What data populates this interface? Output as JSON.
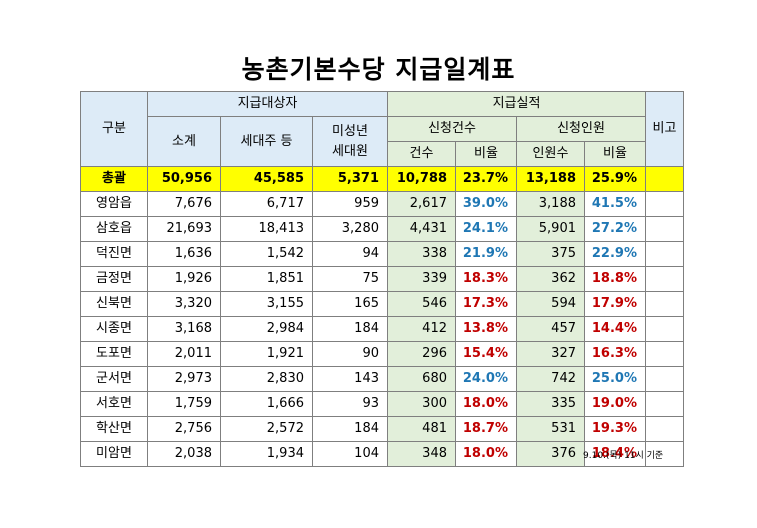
{
  "title": "농촌기본수당 지급일계표",
  "headers": {
    "gubun": "구분",
    "target_group": "지급대상자",
    "subtotal": "소계",
    "household_head": "세대주 등",
    "minor_l1": "미성년",
    "minor_l2": "세대원",
    "perf_group": "지급실적",
    "app_cases": "신청건수",
    "app_people": "신청인원",
    "cases": "건수",
    "rate1": "비율",
    "people": "인원수",
    "rate2": "비율",
    "remarks": "비고"
  },
  "total": {
    "name": "총괄",
    "subtotal": "50,956",
    "household": "45,585",
    "minor": "5,371",
    "cases": "10,788",
    "case_rate": "23.7%",
    "people": "13,188",
    "people_rate": "25.9%"
  },
  "rows": [
    {
      "name": "영암읍",
      "subtotal": "7,676",
      "household": "6,717",
      "minor": "959",
      "cases": "2,617",
      "case_rate": "39.0%",
      "case_color": "blue",
      "people": "3,188",
      "people_rate": "41.5%",
      "people_color": "blue"
    },
    {
      "name": "삼호읍",
      "subtotal": "21,693",
      "household": "18,413",
      "minor": "3,280",
      "cases": "4,431",
      "case_rate": "24.1%",
      "case_color": "blue",
      "people": "5,901",
      "people_rate": "27.2%",
      "people_color": "blue"
    },
    {
      "name": "덕진면",
      "subtotal": "1,636",
      "household": "1,542",
      "minor": "94",
      "cases": "338",
      "case_rate": "21.9%",
      "case_color": "blue",
      "people": "375",
      "people_rate": "22.9%",
      "people_color": "blue"
    },
    {
      "name": "금정면",
      "subtotal": "1,926",
      "household": "1,851",
      "minor": "75",
      "cases": "339",
      "case_rate": "18.3%",
      "case_color": "red",
      "people": "362",
      "people_rate": "18.8%",
      "people_color": "red"
    },
    {
      "name": "신북면",
      "subtotal": "3,320",
      "household": "3,155",
      "minor": "165",
      "cases": "546",
      "case_rate": "17.3%",
      "case_color": "red",
      "people": "594",
      "people_rate": "17.9%",
      "people_color": "red"
    },
    {
      "name": "시종면",
      "subtotal": "3,168",
      "household": "2,984",
      "minor": "184",
      "cases": "412",
      "case_rate": "13.8%",
      "case_color": "red",
      "people": "457",
      "people_rate": "14.4%",
      "people_color": "red"
    },
    {
      "name": "도포면",
      "subtotal": "2,011",
      "household": "1,921",
      "minor": "90",
      "cases": "296",
      "case_rate": "15.4%",
      "case_color": "red",
      "people": "327",
      "people_rate": "16.3%",
      "people_color": "red"
    },
    {
      "name": "군서면",
      "subtotal": "2,973",
      "household": "2,830",
      "minor": "143",
      "cases": "680",
      "case_rate": "24.0%",
      "case_color": "blue",
      "people": "742",
      "people_rate": "25.0%",
      "people_color": "blue"
    },
    {
      "name": "서호면",
      "subtotal": "1,759",
      "household": "1,666",
      "minor": "93",
      "cases": "300",
      "case_rate": "18.0%",
      "case_color": "red",
      "people": "335",
      "people_rate": "19.0%",
      "people_color": "red"
    },
    {
      "name": "학산면",
      "subtotal": "2,756",
      "household": "2,572",
      "minor": "184",
      "cases": "481",
      "case_rate": "18.7%",
      "case_color": "red",
      "people": "531",
      "people_rate": "19.3%",
      "people_color": "red"
    },
    {
      "name": "미암면",
      "subtotal": "2,038",
      "household": "1,934",
      "minor": "104",
      "cases": "348",
      "case_rate": "18.0%",
      "case_color": "red",
      "people": "376",
      "people_rate": "18.4%",
      "people_color": "red"
    }
  ],
  "footer": "9.10.(목) 11시 기준",
  "colors": {
    "header_blue": "#ddebf7",
    "header_green": "#e2efda",
    "total_yellow": "#ffff00",
    "rate_blue": "#1f77b4",
    "rate_red": "#c00000"
  }
}
